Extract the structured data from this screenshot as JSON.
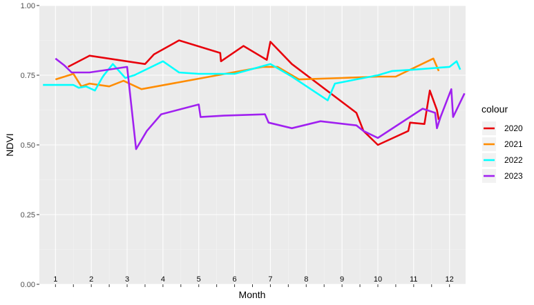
{
  "chart_data": {
    "type": "line",
    "xlabel": "Month",
    "ylabel": "NDVI",
    "xlim": [
      0.55,
      12.45
    ],
    "ylim": [
      0,
      1
    ],
    "y_ticks": [
      0,
      0.25,
      0.5,
      0.75,
      1
    ],
    "y_tick_labels": [
      "0.00",
      "0.25",
      "0.50",
      "0.75",
      "1.00"
    ],
    "x_ticks": [
      1,
      2,
      3,
      4,
      5,
      6,
      7,
      8,
      9,
      10,
      11,
      12
    ],
    "x_tick_labels": [
      "1",
      "2",
      "3",
      "4",
      "5",
      "6",
      "7",
      "8",
      "9",
      "10",
      "11",
      "12"
    ],
    "grid": true,
    "legend": {
      "title": "colour",
      "position": "right"
    },
    "series": [
      {
        "name": "2020",
        "color": "#e8000b",
        "x": [
          1.35,
          1.95,
          3.5,
          3.75,
          4.45,
          5.6,
          5.62,
          6.25,
          6.9,
          7.0,
          7.6,
          9.4,
          9.6,
          10.0,
          10.85,
          10.9,
          11.3,
          11.45,
          11.65,
          11.7
        ],
        "y": [
          0.78,
          0.82,
          0.79,
          0.825,
          0.875,
          0.83,
          0.8,
          0.855,
          0.805,
          0.87,
          0.79,
          0.615,
          0.55,
          0.5,
          0.55,
          0.58,
          0.575,
          0.695,
          0.625,
          0.59
        ]
      },
      {
        "name": "2021",
        "color": "#ff8c00",
        "x": [
          1.0,
          1.5,
          1.72,
          1.95,
          2.5,
          2.9,
          3.4,
          6.8,
          7.2,
          7.8,
          9.0,
          10.0,
          10.5,
          11.55,
          11.7
        ],
        "y": [
          0.735,
          0.755,
          0.71,
          0.72,
          0.71,
          0.73,
          0.7,
          0.78,
          0.78,
          0.735,
          0.74,
          0.745,
          0.745,
          0.81,
          0.765
        ]
      },
      {
        "name": "2022",
        "color": "#00ffff",
        "x": [
          0.65,
          1.05,
          1.5,
          1.65,
          1.85,
          2.1,
          2.3,
          2.35,
          2.6,
          2.95,
          3.2,
          4.0,
          4.45,
          5.0,
          6.0,
          7.0,
          7.6,
          8.6,
          8.8,
          9.2,
          10.0,
          10.4,
          11.0,
          12.0,
          12.2,
          12.3
        ],
        "y": [
          0.715,
          0.715,
          0.715,
          0.705,
          0.71,
          0.695,
          0.74,
          0.75,
          0.79,
          0.74,
          0.75,
          0.8,
          0.76,
          0.755,
          0.755,
          0.79,
          0.745,
          0.66,
          0.72,
          0.73,
          0.75,
          0.765,
          0.77,
          0.78,
          0.8,
          0.77
        ]
      },
      {
        "name": "2023",
        "color": "#a020f0",
        "x": [
          1.0,
          1.25,
          1.45,
          1.95,
          3.0,
          3.25,
          3.55,
          3.95,
          5.0,
          5.05,
          5.7,
          6.85,
          6.95,
          7.6,
          8.4,
          9.4,
          9.6,
          10.0,
          11.25,
          11.6,
          11.65,
          11.75,
          12.05,
          12.1,
          12.42
        ],
        "y": [
          0.81,
          0.785,
          0.76,
          0.76,
          0.78,
          0.485,
          0.55,
          0.61,
          0.645,
          0.6,
          0.605,
          0.61,
          0.58,
          0.56,
          0.585,
          0.57,
          0.55,
          0.525,
          0.63,
          0.615,
          0.56,
          0.6,
          0.7,
          0.6,
          0.685
        ]
      }
    ]
  }
}
